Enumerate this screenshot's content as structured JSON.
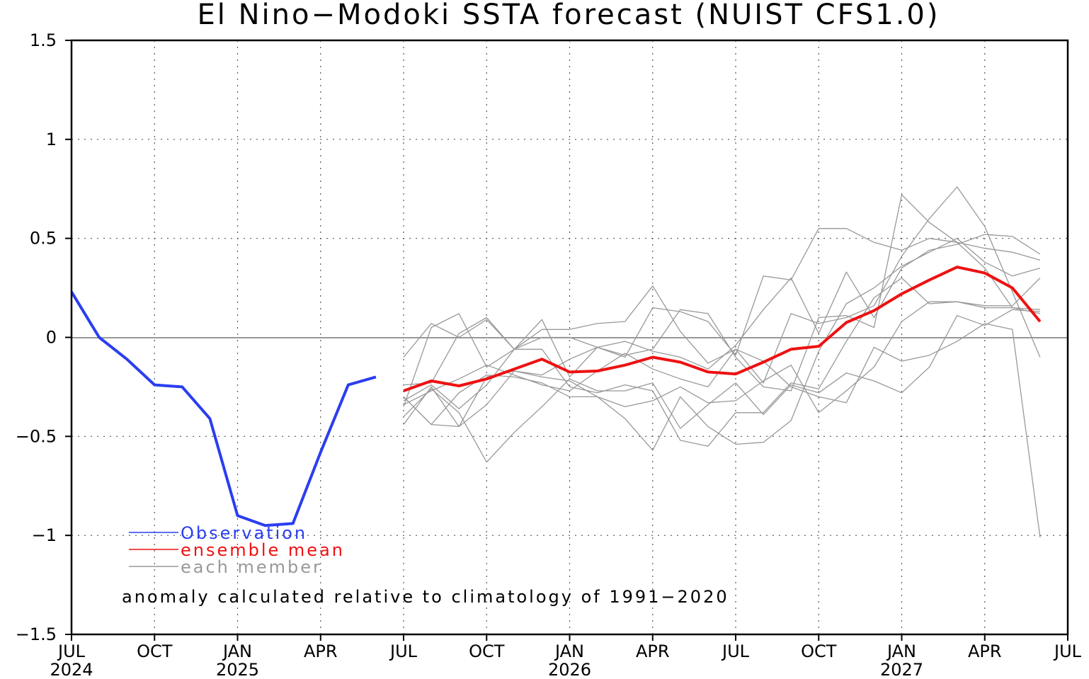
{
  "chart_data": {
    "type": "line",
    "title": "El Nino−Modoki SSTA forecast (NUIST CFS1.0)",
    "xlabel": "",
    "ylabel": "",
    "ylim": [
      -1.5,
      1.5
    ],
    "yticks": [
      1.5,
      1,
      0.5,
      0,
      -0.5,
      -1,
      -1.5
    ],
    "ytick_labels": [
      "1.5",
      "1",
      "0.5",
      "0",
      "−0.5",
      "−1",
      "−1.5"
    ],
    "xlim": [
      "2024-07",
      "2027-07"
    ],
    "xticks": [
      {
        "date": "2024-07",
        "label": "JUL",
        "year": "2024"
      },
      {
        "date": "2024-10",
        "label": "OCT",
        "year": ""
      },
      {
        "date": "2025-01",
        "label": "JAN",
        "year": "2025"
      },
      {
        "date": "2025-04",
        "label": "APR",
        "year": ""
      },
      {
        "date": "2025-07",
        "label": "JUL",
        "year": ""
      },
      {
        "date": "2025-10",
        "label": "OCT",
        "year": ""
      },
      {
        "date": "2026-01",
        "label": "JAN",
        "year": "2026"
      },
      {
        "date": "2026-04",
        "label": "APR",
        "year": ""
      },
      {
        "date": "2026-07",
        "label": "JUL",
        "year": ""
      },
      {
        "date": "2026-10",
        "label": "OCT",
        "year": ""
      },
      {
        "date": "2027-01",
        "label": "JAN",
        "year": "2027"
      },
      {
        "date": "2027-04",
        "label": "APR",
        "year": ""
      },
      {
        "date": "2027-07",
        "label": "JUL",
        "year": ""
      }
    ],
    "grid": true,
    "legend": "bottom-left",
    "series": [
      {
        "name": "Observation",
        "color": "#2a3ef0",
        "x": [
          "2024-07",
          "2024-08",
          "2024-09",
          "2024-10",
          "2024-11",
          "2024-12",
          "2025-01",
          "2025-02",
          "2025-03",
          "2025-04",
          "2025-05",
          "2025-06"
        ],
        "values": [
          0.23,
          0.0,
          -0.11,
          -0.24,
          -0.25,
          -0.41,
          -0.9,
          -0.95,
          -0.94,
          -0.58,
          -0.24,
          -0.2
        ]
      },
      {
        "name": "ensemble mean",
        "color": "#ee1111",
        "x": [
          "2025-07",
          "2025-08",
          "2025-09",
          "2025-10",
          "2025-11",
          "2025-12",
          "2026-01",
          "2026-02",
          "2026-03",
          "2026-04",
          "2026-05",
          "2026-06",
          "2026-07",
          "2026-08",
          "2026-09",
          "2026-10",
          "2026-11",
          "2026-12",
          "2027-01",
          "2027-02",
          "2027-03",
          "2027-04",
          "2027-05",
          "2027-06"
        ],
        "values": [
          -0.27,
          -0.22,
          -0.245,
          -0.21,
          -0.16,
          -0.11,
          -0.175,
          -0.17,
          -0.14,
          -0.1,
          -0.125,
          -0.175,
          -0.185,
          -0.125,
          -0.06,
          -0.045,
          0.075,
          0.135,
          0.22,
          0.29,
          0.355,
          0.325,
          0.25,
          0.08
        ]
      },
      {
        "name": "each member",
        "color": "#999999",
        "x": [
          "2025-07",
          "2025-08",
          "2025-09",
          "2025-10",
          "2025-11",
          "2025-12",
          "2026-01",
          "2026-02",
          "2026-03",
          "2026-04",
          "2026-05",
          "2026-06",
          "2026-07",
          "2026-08",
          "2026-09",
          "2026-10",
          "2026-11",
          "2026-12",
          "2027-01",
          "2027-02",
          "2027-03",
          "2027-04",
          "2027-05",
          "2027-06"
        ],
        "members": [
          [
            -0.1,
            0.07,
            0.0,
            0.09,
            -0.06,
            0.04,
            0.04,
            0.07,
            0.08,
            0.26,
            0.03,
            -0.13,
            -0.06,
            -0.23,
            0.12,
            0.07,
            0.1,
            0.16,
            0.41,
            0.6,
            0.76,
            0.56,
            0.23,
            -0.1
          ],
          [
            -0.24,
            -0.23,
            0.02,
            0.1,
            -0.06,
            0.0,
            0.0,
            -0.05,
            -0.1,
            0.15,
            0.13,
            0.08,
            -0.09,
            0.31,
            0.29,
            0.55,
            0.55,
            0.48,
            0.44,
            0.5,
            0.48,
            0.45,
            0.43,
            0.39
          ],
          [
            -0.35,
            0.05,
            0.12,
            -0.15,
            -0.06,
            0.09,
            -0.2,
            -0.05,
            -0.09,
            -0.06,
            0.14,
            0.12,
            -0.1,
            -0.25,
            -0.27,
            0.1,
            0.11,
            0.05,
            0.72,
            0.58,
            0.48,
            0.35,
            0.15,
            0.14
          ],
          [
            -0.44,
            -0.25,
            -0.45,
            -0.2,
            -0.17,
            -0.19,
            -0.11,
            -0.05,
            -0.02,
            -0.07,
            -0.1,
            -0.16,
            -0.04,
            0.14,
            0.3,
            0.02,
            0.33,
            0.1,
            0.35,
            0.44,
            0.47,
            0.52,
            0.51,
            0.42
          ],
          [
            -0.3,
            -0.44,
            -0.45,
            -0.34,
            -0.17,
            -0.2,
            -0.22,
            -0.3,
            -0.41,
            -0.57,
            -0.3,
            -0.45,
            -0.54,
            -0.53,
            -0.42,
            -0.07,
            0.17,
            0.25,
            0.36,
            0.43,
            0.5,
            0.38,
            0.31,
            0.35
          ],
          [
            -0.32,
            -0.24,
            -0.36,
            -0.24,
            -0.06,
            -0.06,
            -0.25,
            -0.28,
            -0.24,
            -0.27,
            -0.52,
            -0.55,
            -0.38,
            -0.38,
            -0.23,
            -0.26,
            -0.02,
            0.2,
            0.3,
            0.17,
            0.18,
            0.15,
            0.15,
            0.12
          ],
          [
            -0.4,
            -0.26,
            -0.38,
            -0.63,
            -0.48,
            -0.35,
            -0.21,
            -0.27,
            -0.27,
            -0.23,
            -0.46,
            -0.34,
            -0.23,
            -0.39,
            -0.24,
            -0.28,
            -0.18,
            -0.22,
            -0.28,
            -0.15,
            0.11,
            0.06,
            0.14,
            0.13
          ],
          [
            -0.3,
            -0.44,
            -0.28,
            -0.19,
            -0.2,
            -0.23,
            -0.3,
            -0.3,
            -0.35,
            -0.32,
            -0.25,
            -0.33,
            -0.32,
            -0.22,
            -0.14,
            -0.38,
            -0.27,
            -0.15,
            0.08,
            0.18,
            0.18,
            0.16,
            0.16,
            0.3
          ],
          [
            -0.34,
            -0.27,
            -0.21,
            -0.14,
            -0.19,
            -0.24,
            -0.27,
            -0.17,
            -0.08,
            -0.16,
            -0.21,
            -0.25,
            -0.06,
            -0.12,
            -0.25,
            -0.3,
            -0.33,
            -0.05,
            -0.12,
            -0.09,
            -0.02,
            0.07,
            0.04,
            -1.01
          ]
        ]
      }
    ],
    "legend_entries": [
      {
        "label": "Observation",
        "color": "#2a3ef0"
      },
      {
        "label": "ensemble mean",
        "color": "#ee1111"
      },
      {
        "label": "each member",
        "color": "#999999"
      }
    ],
    "annotation": "anomaly calculated relative to climatology of 1991−2020"
  }
}
